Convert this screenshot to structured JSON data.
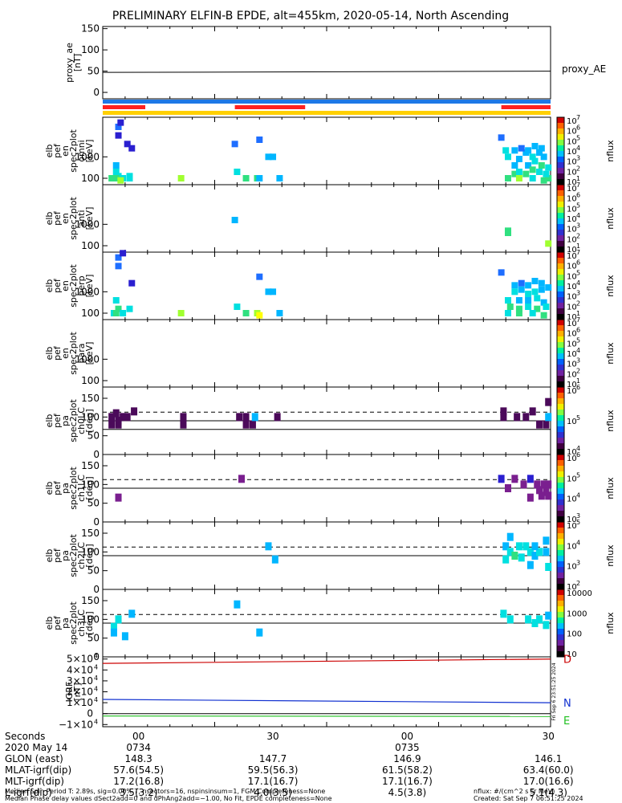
{
  "title": "PRELIMINARY ELFIN-B EPDE, alt=455km, 2020-05-14, North Ascending",
  "x_ticks": [
    "00",
    "30",
    "00",
    "30"
  ],
  "chart_data": [
    {
      "type": "line",
      "id": "proxy_ae",
      "ylabel": [
        "proxy_ae",
        "[nT]"
      ],
      "legend": "proxy_AE",
      "yticks": [
        "150",
        "100",
        "50",
        "0"
      ],
      "ylim": [
        -15,
        155
      ],
      "series": [
        {
          "name": "proxy_AE",
          "x": [
            0,
            1
          ],
          "y": [
            47,
            50
          ]
        }
      ]
    },
    {
      "type": "table",
      "id": "status_bars",
      "rows": [
        {
          "color": "#1e78e6",
          "segments": [
            [
              0,
              1
            ]
          ]
        },
        {
          "color": "#ff2020",
          "segments": [
            [
              0,
              0.095
            ],
            [
              0.295,
              0.452
            ],
            [
              0.89,
              1
            ]
          ]
        },
        {
          "color": "#ffd000",
          "segments": [
            [
              0,
              1
            ]
          ]
        }
      ]
    },
    {
      "type": "heatmap",
      "id": "spec_omni",
      "ylabel": [
        "elb",
        "pef",
        "en",
        "spec2plot",
        "omni",
        "[keV]"
      ],
      "yticks": [
        "1000",
        "100"
      ],
      "colorbar": {
        "label": "nflux",
        "ticks": [
          "10",
          "10",
          "10",
          "10",
          "10",
          "10",
          "10"
        ],
        "exps": [
          "1",
          "2",
          "3",
          "4",
          "5",
          "6",
          "7"
        ]
      },
      "cells": [
        [
          0.035,
          4.4,
          4
        ],
        [
          0.04,
          4.6,
          3
        ],
        [
          0.035,
          4.0,
          3
        ],
        [
          0.055,
          3.6,
          3
        ],
        [
          0.065,
          3.4,
          3
        ],
        [
          0.03,
          2.6,
          5
        ],
        [
          0.025,
          2.0,
          6
        ],
        [
          0.035,
          2.1,
          6
        ],
        [
          0.045,
          2.0,
          6
        ],
        [
          0.03,
          2.3,
          6
        ],
        [
          0.02,
          2.0,
          7
        ],
        [
          0.03,
          2.0,
          7
        ],
        [
          0.06,
          2.1,
          6
        ],
        [
          0.06,
          2.0,
          6
        ],
        [
          0.04,
          1.9,
          8
        ],
        [
          0.175,
          2.0,
          8
        ],
        [
          0.3,
          2.3,
          6
        ],
        [
          0.32,
          2.0,
          7
        ],
        [
          0.345,
          2.0,
          7
        ],
        [
          0.35,
          2.0,
          5
        ],
        [
          0.37,
          3.0,
          5
        ],
        [
          0.38,
          3.0,
          5
        ],
        [
          0.395,
          2.0,
          5
        ],
        [
          0.295,
          3.6,
          4
        ],
        [
          0.35,
          3.8,
          4
        ],
        [
          0.89,
          3.9,
          4
        ],
        [
          0.9,
          3.3,
          6
        ],
        [
          0.905,
          3.0,
          6
        ],
        [
          0.92,
          2.2,
          7
        ],
        [
          0.92,
          2.6,
          5
        ],
        [
          0.93,
          2.9,
          5
        ],
        [
          0.945,
          3.2,
          5
        ],
        [
          0.96,
          3.0,
          6
        ],
        [
          0.975,
          3.2,
          5
        ],
        [
          0.985,
          3.0,
          5
        ],
        [
          0.995,
          2.5,
          6
        ],
        [
          0.995,
          2.0,
          7
        ],
        [
          0.92,
          3.3,
          5
        ],
        [
          0.935,
          3.4,
          4
        ],
        [
          0.95,
          3.3,
          5
        ],
        [
          0.965,
          3.5,
          5
        ],
        [
          0.98,
          3.4,
          5
        ],
        [
          0.95,
          2.6,
          5
        ],
        [
          0.965,
          2.8,
          6
        ],
        [
          0.98,
          2.6,
          7
        ],
        [
          0.93,
          2.3,
          6
        ],
        [
          0.945,
          2.2,
          7
        ],
        [
          0.96,
          2.4,
          7
        ],
        [
          0.975,
          2.3,
          6
        ],
        [
          0.99,
          2.2,
          6
        ],
        [
          0.905,
          2.0,
          7
        ],
        [
          0.93,
          2.0,
          8
        ],
        [
          0.96,
          2.0,
          6
        ],
        [
          0.985,
          1.9,
          7
        ]
      ]
    },
    {
      "type": "heatmap",
      "id": "spec_anti",
      "ylabel": [
        "elb",
        "pef",
        "en",
        "spec2plot",
        "anti",
        "[keV]"
      ],
      "yticks": [
        "1000",
        "100"
      ],
      "colorbar": {
        "label": "nflux",
        "ticks": [
          "10",
          "10",
          "10",
          "10",
          "10",
          "10",
          "10"
        ],
        "exps": [
          "1",
          "2",
          "3",
          "4",
          "5",
          "6",
          "7"
        ]
      },
      "cells": [
        [
          0.295,
          3.2,
          5
        ],
        [
          0.905,
          2.7,
          7
        ],
        [
          0.905,
          2.6,
          7
        ],
        [
          0.995,
          2.1,
          8
        ]
      ]
    },
    {
      "type": "heatmap",
      "id": "spec_perp",
      "ylabel": [
        "elb",
        "pef",
        "en",
        "spec2plot",
        "perp",
        "[keV]"
      ],
      "yticks": [
        "1000",
        "100"
      ],
      "colorbar": {
        "label": "nflux",
        "ticks": [
          "10",
          "10",
          "10",
          "10",
          "10",
          "10",
          "10"
        ],
        "exps": [
          "1",
          "2",
          "3",
          "4",
          "5",
          "6",
          "7"
        ]
      },
      "cells": [
        [
          0.035,
          4.6,
          4
        ],
        [
          0.045,
          4.8,
          3
        ],
        [
          0.035,
          4.2,
          4
        ],
        [
          0.065,
          3.4,
          3
        ],
        [
          0.03,
          2.6,
          6
        ],
        [
          0.025,
          2.0,
          6
        ],
        [
          0.035,
          2.2,
          7
        ],
        [
          0.045,
          2.0,
          6
        ],
        [
          0.06,
          2.2,
          6
        ],
        [
          0.03,
          2.0,
          7
        ],
        [
          0.175,
          2.0,
          8
        ],
        [
          0.3,
          2.3,
          6
        ],
        [
          0.32,
          2.0,
          7
        ],
        [
          0.345,
          2.0,
          8
        ],
        [
          0.35,
          1.9,
          9
        ],
        [
          0.37,
          3.0,
          5
        ],
        [
          0.38,
          3.0,
          5
        ],
        [
          0.395,
          2.0,
          5
        ],
        [
          0.35,
          3.7,
          4
        ],
        [
          0.89,
          3.9,
          4
        ],
        [
          0.92,
          3.3,
          5
        ],
        [
          0.935,
          3.4,
          4
        ],
        [
          0.95,
          3.3,
          5
        ],
        [
          0.965,
          3.5,
          5
        ],
        [
          0.98,
          3.4,
          5
        ],
        [
          0.995,
          3.2,
          5
        ],
        [
          0.92,
          3.0,
          6
        ],
        [
          0.935,
          3.1,
          5
        ],
        [
          0.95,
          2.9,
          6
        ],
        [
          0.965,
          3.0,
          6
        ],
        [
          0.98,
          3.1,
          5
        ],
        [
          0.905,
          2.6,
          6
        ],
        [
          0.93,
          2.6,
          5
        ],
        [
          0.95,
          2.6,
          5
        ],
        [
          0.97,
          2.7,
          6
        ],
        [
          0.985,
          2.5,
          5
        ],
        [
          0.91,
          2.3,
          7
        ],
        [
          0.93,
          2.2,
          7
        ],
        [
          0.95,
          2.3,
          6
        ],
        [
          0.97,
          2.2,
          7
        ],
        [
          0.99,
          2.3,
          6
        ],
        [
          0.905,
          2.0,
          6
        ],
        [
          0.93,
          2.0,
          7
        ],
        [
          0.96,
          2.0,
          6
        ],
        [
          0.985,
          1.9,
          7
        ]
      ]
    },
    {
      "type": "heatmap",
      "id": "spec_para",
      "ylabel": [
        "elb",
        "pef",
        "en",
        "spec2plot",
        "para",
        "[keV]"
      ],
      "yticks": [
        "1000",
        "100"
      ],
      "colorbar": {
        "label": "nflux",
        "ticks": [
          "10",
          "10",
          "10",
          "10",
          "10",
          "10",
          "10"
        ],
        "exps": [
          "1",
          "2",
          "3",
          "4",
          "5",
          "6",
          "7"
        ]
      },
      "cells": []
    },
    {
      "type": "heatmap",
      "id": "pa_ch0",
      "ylabel": [
        "elb",
        "pef",
        "pa",
        "spec2plot",
        "ch0LC",
        "[deg]"
      ],
      "yticks": [
        "150",
        "100",
        "50",
        "0"
      ],
      "ylim": [
        0,
        180
      ],
      "loss_cone": 113,
      "anti_loss_cone": 67,
      "colorbar": {
        "label": "nflux",
        "ticks": [
          "10",
          "10",
          "10"
        ],
        "exps": [
          "4",
          "5",
          "6"
        ]
      },
      "cells": [
        [
          0.02,
          80,
          1
        ],
        [
          0.02,
          100,
          1
        ],
        [
          0.035,
          80,
          1
        ],
        [
          0.035,
          90,
          1
        ],
        [
          0.045,
          100,
          1
        ],
        [
          0.055,
          100,
          1
        ],
        [
          0.03,
          110,
          1
        ],
        [
          0.07,
          115,
          1
        ],
        [
          0.18,
          100,
          1
        ],
        [
          0.18,
          80,
          1
        ],
        [
          0.305,
          100,
          1
        ],
        [
          0.32,
          100,
          1
        ],
        [
          0.32,
          80,
          1
        ],
        [
          0.335,
          80,
          1
        ],
        [
          0.34,
          100,
          5
        ],
        [
          0.39,
          100,
          1
        ],
        [
          0.895,
          115,
          1
        ],
        [
          0.895,
          100,
          1
        ],
        [
          0.925,
          100,
          1
        ],
        [
          0.945,
          100,
          1
        ],
        [
          0.96,
          115,
          1
        ],
        [
          0.975,
          80,
          1
        ],
        [
          0.99,
          80,
          1
        ],
        [
          0.995,
          100,
          5
        ],
        [
          0.995,
          140,
          1
        ]
      ]
    },
    {
      "type": "heatmap",
      "id": "pa_ch1",
      "ylabel": [
        "elb",
        "pef",
        "pa",
        "spec2plot",
        "ch1LC",
        "[deg]"
      ],
      "yticks": [
        "150",
        "100",
        "50",
        "0"
      ],
      "ylim": [
        0,
        180
      ],
      "loss_cone": 113,
      "anti_loss_cone": 90,
      "colorbar": {
        "label": "nflux",
        "ticks": [
          "10",
          "10",
          "10",
          "10"
        ],
        "exps": [
          "3",
          "4",
          "5",
          "6"
        ]
      },
      "cells": [
        [
          0.035,
          65,
          2
        ],
        [
          0.31,
          115,
          2
        ],
        [
          0.89,
          115,
          3
        ],
        [
          0.92,
          115,
          2
        ],
        [
          0.94,
          100,
          2
        ],
        [
          0.955,
          115,
          3
        ],
        [
          0.97,
          100,
          2
        ],
        [
          0.985,
          100,
          2
        ],
        [
          0.995,
          100,
          2
        ],
        [
          0.975,
          85,
          2
        ],
        [
          0.99,
          80,
          2
        ],
        [
          0.995,
          70,
          2
        ],
        [
          0.905,
          90,
          2
        ],
        [
          0.955,
          65,
          2
        ],
        [
          0.98,
          70,
          2
        ]
      ]
    },
    {
      "type": "heatmap",
      "id": "pa_ch2",
      "ylabel": [
        "elb",
        "pef",
        "pa",
        "spec2plot",
        "ch2LC",
        "[deg]"
      ],
      "yticks": [
        "150",
        "100",
        "50",
        "0"
      ],
      "ylim": [
        0,
        180
      ],
      "loss_cone": 113,
      "anti_loss_cone": 90,
      "colorbar": {
        "label": "nflux",
        "ticks": [
          "10",
          "10",
          "10",
          "10"
        ],
        "exps": [
          "2",
          "3",
          "4",
          "5"
        ]
      },
      "cells": [
        [
          0.37,
          115,
          5
        ],
        [
          0.385,
          80,
          5
        ],
        [
          0.91,
          140,
          5
        ],
        [
          0.9,
          115,
          5
        ],
        [
          0.91,
          100,
          6
        ],
        [
          0.92,
          90,
          7
        ],
        [
          0.93,
          115,
          6
        ],
        [
          0.945,
          115,
          6
        ],
        [
          0.955,
          100,
          6
        ],
        [
          0.965,
          90,
          5
        ],
        [
          0.975,
          100,
          6
        ],
        [
          0.99,
          100,
          5
        ],
        [
          0.99,
          130,
          5
        ],
        [
          0.995,
          60,
          6
        ],
        [
          0.955,
          65,
          5
        ],
        [
          0.9,
          80,
          6
        ],
        [
          0.935,
          85,
          6
        ],
        [
          0.965,
          115,
          5
        ]
      ]
    },
    {
      "type": "heatmap",
      "id": "pa_ch3",
      "ylabel": [
        "elb",
        "pef",
        "pa",
        "spec2plot",
        "ch3LC",
        "[deg]"
      ],
      "yticks": [
        "150",
        "100",
        "50",
        "0"
      ],
      "ylim": [
        0,
        180
      ],
      "loss_cone": 113,
      "anti_loss_cone": 90,
      "colorbar": {
        "label": "nflux",
        "ticks": [
          "10",
          "100",
          "1000",
          "10000"
        ],
        "exps": [
          "",
          "",
          "",
          ""
        ]
      },
      "cells": [
        [
          0.025,
          80,
          6
        ],
        [
          0.025,
          65,
          5
        ],
        [
          0.035,
          100,
          6
        ],
        [
          0.05,
          55,
          5
        ],
        [
          0.065,
          115,
          5
        ],
        [
          0.3,
          140,
          5
        ],
        [
          0.35,
          65,
          5
        ],
        [
          0.895,
          115,
          6
        ],
        [
          0.91,
          100,
          6
        ],
        [
          0.95,
          100,
          6
        ],
        [
          0.965,
          90,
          6
        ],
        [
          0.975,
          100,
          6
        ],
        [
          0.99,
          85,
          6
        ],
        [
          0.995,
          110,
          5
        ]
      ]
    },
    {
      "type": "line",
      "id": "igrf",
      "ylabel": [
        "IGRF",
        "[nT]"
      ],
      "yticks": [
        "5×10",
        "4×10",
        "3×10",
        "2×10",
        "1×10",
        "0",
        "−1×10"
      ],
      "ytick_exps": [
        "4",
        "4",
        "4",
        "4",
        "4",
        "",
        "4"
      ],
      "ylim": [
        -12000,
        52000
      ],
      "series": [
        {
          "name": "D",
          "color": "#cc0000",
          "x": [
            0,
            1
          ],
          "y": [
            46000,
            50000
          ]
        },
        {
          "name": "N",
          "color": "#1030d0",
          "x": [
            0,
            1
          ],
          "y": [
            13000,
            10000
          ]
        },
        {
          "name": "E",
          "color": "#20c020",
          "x": [
            0,
            1
          ],
          "y": [
            -2200,
            -2600
          ]
        }
      ],
      "side_stamp": "Fri Sep 6 23:51:25 2024"
    }
  ],
  "footer": {
    "rows": [
      {
        "label": "Seconds",
        "values": [
          "00",
          "30",
          "00",
          "30"
        ]
      },
      {
        "label": "2020 May 14",
        "values": [
          "0734",
          "",
          "0735",
          ""
        ]
      },
      {
        "label": "GLON (east)",
        "values": [
          "148.3",
          "147.7",
          "146.9",
          "146.1"
        ]
      },
      {
        "label": "MLAT-igrf(dip)",
        "values": [
          "57.6(54.5)",
          "59.5(56.3)",
          "61.5(58.2)",
          "63.4(60.0)"
        ]
      },
      {
        "label": "MLT-igrf(dip)",
        "values": [
          "17.2(16.8)",
          "17.1(16.7)",
          "17.1(16.7)",
          "17.0(16.6)"
        ]
      },
      {
        "label": "L-igrf(dip)",
        "values": [
          "3.5(3.2)",
          "4.0(3.5)",
          "4.5(3.8)",
          "5.1(4.3)"
        ]
      }
    ],
    "note1": "Median Spin Period T: 2.89s, sig=0.00% T, nsectors=16, nspinsinsum=1, FGM Completeness=None",
    "note2": "Median Phase delay values dSect2add=0 and dPhAng2add=−1.00, No Fit, EPDE completeness=None",
    "units": "nflux: #/(cm^2 s sr MeV)",
    "created": "Created: Sat Sep  7 06:51:25 2024"
  }
}
